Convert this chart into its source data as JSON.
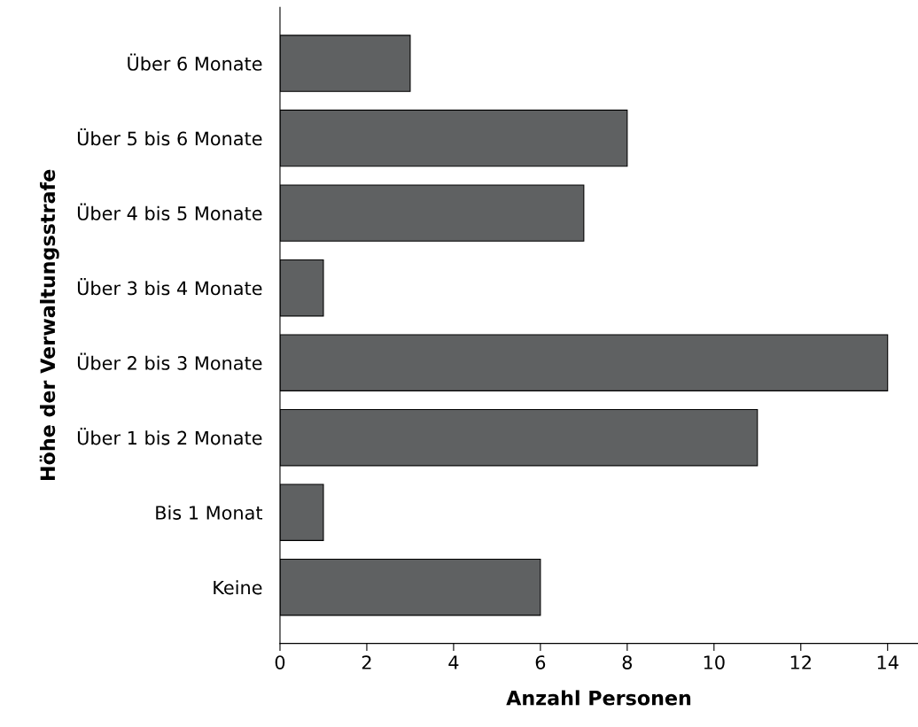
{
  "chart_data": {
    "type": "bar",
    "orientation": "horizontal",
    "xlabel": "Anzahl Personen",
    "ylabel": "Höhe der Verwaltungsstrafe",
    "categories": [
      "Über 6 Monate",
      "Über 5 bis 6 Monate",
      "Über 4 bis 5 Monate",
      "Über 3 bis 4 Monate",
      "Über 2 bis 3 Monate",
      "Über 1 bis 2 Monate",
      "Bis 1 Monat",
      "Keine"
    ],
    "values": [
      3,
      8,
      7,
      1,
      14,
      11,
      1,
      6
    ],
    "color": "#5f6162",
    "xlim": [
      0,
      14.7
    ],
    "xticks": [
      0,
      2,
      4,
      6,
      8,
      10,
      12,
      14
    ],
    "grid": false,
    "legend": false
  }
}
